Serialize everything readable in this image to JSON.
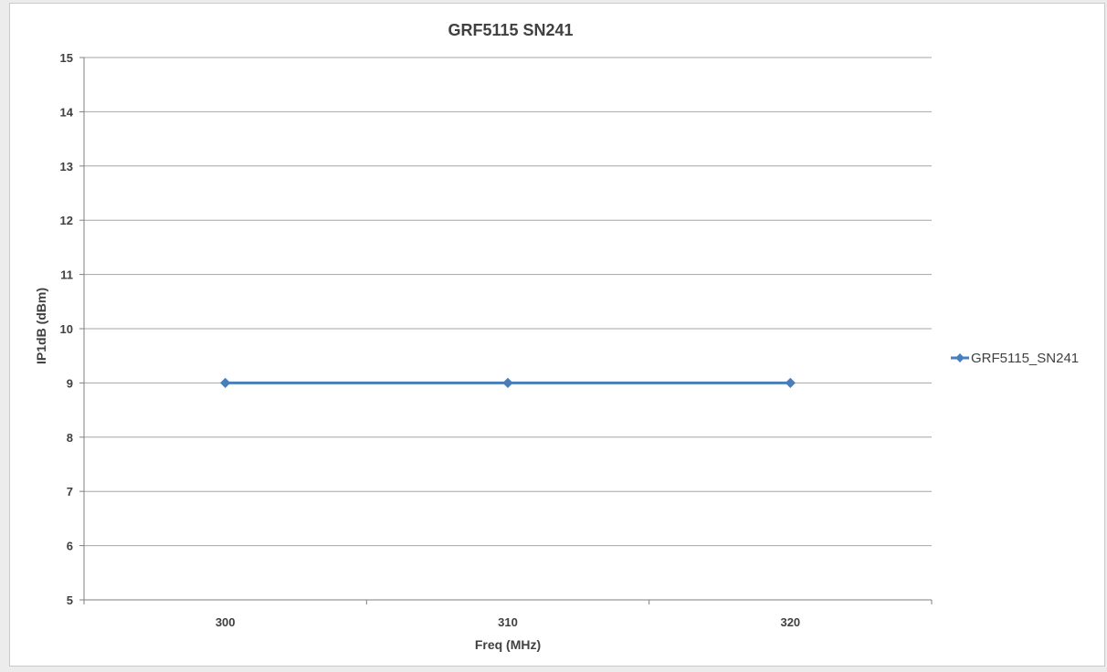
{
  "chart_data": {
    "type": "line",
    "title": "GRF5115 SN241",
    "xlabel": "Freq (MHz)",
    "ylabel": "IP1dB (dBm)",
    "categories": [
      "300",
      "310",
      "320"
    ],
    "series": [
      {
        "name": "GRF5115_SN241",
        "values": [
          9,
          9,
          9
        ],
        "color": "#4a7ebb"
      }
    ],
    "ylim": [
      5,
      15
    ],
    "yticks": [
      5,
      6,
      7,
      8,
      9,
      10,
      11,
      12,
      13,
      14,
      15
    ],
    "ytick_labels": [
      "5",
      "6",
      "7",
      "8",
      "9",
      "10",
      "11",
      "12",
      "13",
      "14",
      "15"
    ],
    "grid": true,
    "legend_position": "right",
    "colors": {
      "gridline": "#a6a6a6",
      "axis": "#7f7f7f"
    }
  }
}
